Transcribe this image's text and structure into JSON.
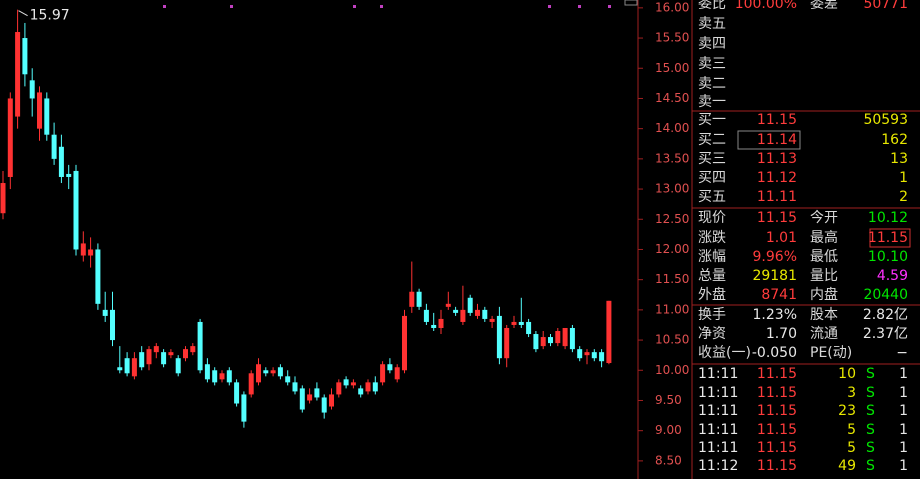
{
  "chart": {
    "type": "candlestick",
    "ylim": [
      8.2,
      16.13
    ],
    "yticks": [
      {
        "value": 16,
        "label": "16.00"
      },
      {
        "value": 15.5,
        "label": "15.50"
      },
      {
        "value": 15,
        "label": "15.00"
      },
      {
        "value": 14.5,
        "label": "14.50"
      },
      {
        "value": 14,
        "label": "14.00"
      },
      {
        "value": 13.5,
        "label": "13.50"
      },
      {
        "value": 13,
        "label": "13.00"
      },
      {
        "value": 12.5,
        "label": "12.50"
      },
      {
        "value": 12,
        "label": "12.00"
      },
      {
        "value": 11.5,
        "label": "11.50"
      },
      {
        "value": 11,
        "label": "11.00"
      },
      {
        "value": 10.5,
        "label": "10.50"
      },
      {
        "value": 10,
        "label": "10.00"
      },
      {
        "value": 9.5,
        "label": "9.50"
      },
      {
        "value": 9,
        "label": "9.00"
      },
      {
        "value": 8.5,
        "label": "8.50"
      }
    ],
    "peak_label": "15.97",
    "candles": [
      [
        12.6,
        13.3,
        12.5,
        13.1
      ],
      [
        13.2,
        14.6,
        13.0,
        14.5
      ],
      [
        14.2,
        15.97,
        14.0,
        15.6
      ],
      [
        15.5,
        15.75,
        14.7,
        14.9
      ],
      [
        14.8,
        15.0,
        14.2,
        14.5
      ],
      [
        14.0,
        14.7,
        13.8,
        14.6
      ],
      [
        14.5,
        14.6,
        13.8,
        13.9
      ],
      [
        13.9,
        14.1,
        13.4,
        13.5
      ],
      [
        13.7,
        13.9,
        13.1,
        13.2
      ],
      [
        13.25,
        13.4,
        13.0,
        13.2
      ],
      [
        13.3,
        13.4,
        11.9,
        12.0
      ],
      [
        11.9,
        12.3,
        11.8,
        12.1
      ],
      [
        11.9,
        12.2,
        11.7,
        12.0
      ],
      [
        12.0,
        12.1,
        11.0,
        11.1
      ],
      [
        11.0,
        11.3,
        10.8,
        10.9
      ],
      [
        11.0,
        11.3,
        10.4,
        10.5
      ],
      [
        10.05,
        10.4,
        9.95,
        10.0
      ],
      [
        10.2,
        10.3,
        9.9,
        9.95
      ],
      [
        9.9,
        10.3,
        9.85,
        10.2
      ],
      [
        10.3,
        10.4,
        10.0,
        10.05
      ],
      [
        10.1,
        10.4,
        10.0,
        10.35
      ],
      [
        10.3,
        10.45,
        10.2,
        10.4
      ],
      [
        10.3,
        10.35,
        10.05,
        10.1
      ],
      [
        10.25,
        10.35,
        10.2,
        10.3
      ],
      [
        10.2,
        10.25,
        9.9,
        9.95
      ],
      [
        10.2,
        10.4,
        10.15,
        10.35
      ],
      [
        10.3,
        10.45,
        10.25,
        10.4
      ],
      [
        10.8,
        10.85,
        9.95,
        10.0
      ],
      [
        10.1,
        10.2,
        9.8,
        9.85
      ],
      [
        10.0,
        10.05,
        9.75,
        9.8
      ],
      [
        9.85,
        10.0,
        9.8,
        9.95
      ],
      [
        10.0,
        10.05,
        9.75,
        9.8
      ],
      [
        9.8,
        9.85,
        9.4,
        9.45
      ],
      [
        9.6,
        9.65,
        9.05,
        9.15
      ],
      [
        9.6,
        10.0,
        9.55,
        9.95
      ],
      [
        9.8,
        10.2,
        9.75,
        10.1
      ],
      [
        10.0,
        10.05,
        9.9,
        9.95
      ],
      [
        9.95,
        10.05,
        9.9,
        10.0
      ],
      [
        10.05,
        10.1,
        9.85,
        9.9
      ],
      [
        9.9,
        10.0,
        9.75,
        9.8
      ],
      [
        9.8,
        9.9,
        9.6,
        9.65
      ],
      [
        9.7,
        9.75,
        9.3,
        9.35
      ],
      [
        9.5,
        9.7,
        9.45,
        9.6
      ],
      [
        9.7,
        9.8,
        9.5,
        9.55
      ],
      [
        9.55,
        9.6,
        9.2,
        9.3
      ],
      [
        9.4,
        9.7,
        9.35,
        9.6
      ],
      [
        9.6,
        9.85,
        9.55,
        9.8
      ],
      [
        9.85,
        9.9,
        9.7,
        9.75
      ],
      [
        9.75,
        9.85,
        9.7,
        9.8
      ],
      [
        9.7,
        9.75,
        9.55,
        9.6
      ],
      [
        9.65,
        9.85,
        9.6,
        9.8
      ],
      [
        9.8,
        9.9,
        9.6,
        9.65
      ],
      [
        9.8,
        10.15,
        9.75,
        10.1
      ],
      [
        10.1,
        10.2,
        9.95,
        10.0
      ],
      [
        9.85,
        10.1,
        9.8,
        10.05
      ],
      [
        10.0,
        11.0,
        9.95,
        10.9
      ],
      [
        11.05,
        11.8,
        10.95,
        11.3
      ],
      [
        11.3,
        11.35,
        11.0,
        11.05
      ],
      [
        11.0,
        11.1,
        10.75,
        10.8
      ],
      [
        10.75,
        10.95,
        10.65,
        10.7
      ],
      [
        10.7,
        11.0,
        10.6,
        10.85
      ],
      [
        11.05,
        11.3,
        11.0,
        11.1
      ],
      [
        11.0,
        11.05,
        10.9,
        10.95
      ],
      [
        10.8,
        11.4,
        10.75,
        11.0
      ],
      [
        11.2,
        11.25,
        10.9,
        10.95
      ],
      [
        10.9,
        11.1,
        10.85,
        11.0
      ],
      [
        11.0,
        11.05,
        10.8,
        10.85
      ],
      [
        10.8,
        10.9,
        10.7,
        10.85
      ],
      [
        10.9,
        11.05,
        10.1,
        10.2
      ],
      [
        10.2,
        10.75,
        10.05,
        10.7
      ],
      [
        10.75,
        10.9,
        10.7,
        10.8
      ],
      [
        10.8,
        11.2,
        10.7,
        10.75
      ],
      [
        10.8,
        10.85,
        10.55,
        10.6
      ],
      [
        10.6,
        10.65,
        10.3,
        10.35
      ],
      [
        10.4,
        10.65,
        10.35,
        10.55
      ],
      [
        10.55,
        10.6,
        10.4,
        10.45
      ],
      [
        10.45,
        10.7,
        10.4,
        10.65
      ],
      [
        10.4,
        10.7,
        10.35,
        10.7
      ],
      [
        10.7,
        10.75,
        10.3,
        10.35
      ],
      [
        10.35,
        10.4,
        10.15,
        10.2
      ],
      [
        10.25,
        10.35,
        10.1,
        10.3
      ],
      [
        10.3,
        10.35,
        10.15,
        10.2
      ],
      [
        10.3,
        10.35,
        10.05,
        10.15
      ],
      [
        10.12,
        11.15,
        10.1,
        11.15
      ]
    ]
  },
  "panel": {
    "top": [
      "委比",
      "100.00%",
      "委差",
      "50771"
    ],
    "sell": [
      "卖五",
      "卖四",
      "卖三",
      "卖二",
      "卖一"
    ],
    "buy": [
      [
        "买一",
        "11.15",
        "50593"
      ],
      [
        "买二",
        "11.14",
        "162"
      ],
      [
        "买三",
        "11.13",
        "13"
      ],
      [
        "买四",
        "11.12",
        "1"
      ],
      [
        "买五",
        "11.11",
        "2"
      ]
    ],
    "quote": [
      [
        "现价",
        "11.15",
        "今开",
        "10.12"
      ],
      [
        "涨跌",
        "1.01",
        "最高",
        "11.15"
      ],
      [
        "涨幅",
        "9.96%",
        "最低",
        "10.10"
      ],
      [
        "总量",
        "29181",
        "量比",
        "4.59"
      ],
      [
        "外盘",
        "8741",
        "内盘",
        "20440"
      ],
      [
        "换手",
        "1.23%",
        "股本",
        "2.82亿"
      ],
      [
        "净资",
        "1.70",
        "流通",
        "2.37亿"
      ],
      [
        "收益(一)",
        "-0.050",
        "PE(动)",
        "−"
      ]
    ],
    "trades": [
      [
        "11:11",
        "11.15",
        "10",
        "S",
        "1"
      ],
      [
        "11:11",
        "11.15",
        "3",
        "S",
        "1"
      ],
      [
        "11:11",
        "11.15",
        "23",
        "S",
        "1"
      ],
      [
        "11:11",
        "11.15",
        "5",
        "S",
        "1"
      ],
      [
        "11:11",
        "11.15",
        "5",
        "S",
        "1"
      ],
      [
        "11:12",
        "11.15",
        "49",
        "S",
        "1"
      ]
    ]
  }
}
